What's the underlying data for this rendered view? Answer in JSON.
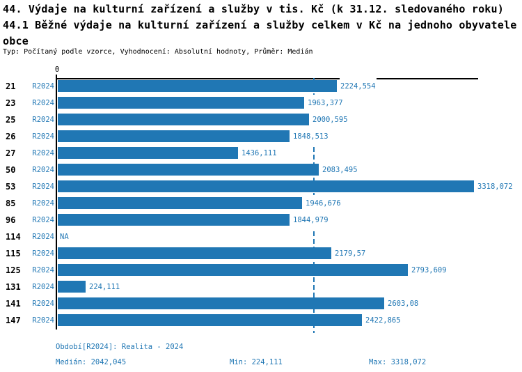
{
  "title": {
    "line1": "44. Výdaje na kulturní zařízení a služby v tis. Kč (k 31.12. sledovaného roku)",
    "line2": "44.1 Běžné výdaje na kulturní zařízení a služby celkem v Kč na jednoho obyvatele",
    "line3": "obce"
  },
  "meta": "Typ: Počítaný podle vzorce, Vyhodnocení: Absolutní hodnoty, Průměr: Medián",
  "chart_data": {
    "type": "bar",
    "orientation": "horizontal",
    "axis_zero_label": "0",
    "series_label": "R2024",
    "categories": [
      "21",
      "23",
      "25",
      "26",
      "27",
      "50",
      "53",
      "85",
      "96",
      "114",
      "115",
      "125",
      "131",
      "141",
      "147"
    ],
    "values": [
      2224.554,
      1963.377,
      2000.595,
      1848.513,
      1436.111,
      2083.495,
      3318.072,
      1946.676,
      1844.979,
      null,
      2179.57,
      2793.609,
      224.111,
      2603.08,
      2422.865
    ],
    "value_labels": [
      "2224,554",
      "1963,377",
      "2000,595",
      "1848,513",
      "1436,111",
      "2083,495",
      "3318,072",
      "1946,676",
      "1844,979",
      "NA",
      "2179,57",
      "2793,609",
      "224,111",
      "2603,08",
      "2422,865"
    ],
    "median": 2042.045,
    "min": 224.111,
    "max": 3318.072,
    "xlim": [
      0,
      3350
    ],
    "grid": false,
    "median_line_style": "dashed",
    "bar_color": "#2077b4",
    "text_color": "#2077b4",
    "median_line_color": "#2077b4"
  },
  "footer": {
    "period": "Období[R2024]: Realita - 2024",
    "median_label": "Medián: 2042,045",
    "min_label": "Min: 224,111",
    "max_label": "Max: 3318,072"
  }
}
